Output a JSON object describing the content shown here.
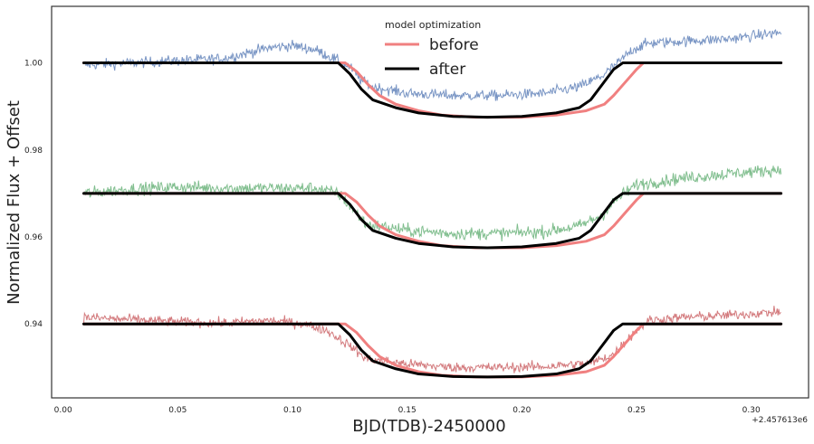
{
  "chart_data": {
    "type": "line",
    "title": "",
    "xlabel": "BJD(TDB)-2450000",
    "ylabel": "Normalized Flux + Offset",
    "x_offset_text": "+2.457613e6",
    "xlim": [
      -0.005,
      0.325
    ],
    "ylim": [
      0.923,
      1.013
    ],
    "xticks": [
      0.0,
      0.05,
      0.1,
      0.15,
      0.2,
      0.25,
      0.3
    ],
    "xtick_labels": [
      "0.00",
      "0.05",
      "0.10",
      "0.15",
      "0.20",
      "0.25",
      "0.30"
    ],
    "yticks": [
      0.94,
      0.96,
      0.98,
      1.0
    ],
    "ytick_labels": [
      "0.94",
      "0.96",
      "0.98",
      "1.00"
    ],
    "grid": false,
    "legend": {
      "title": "model optimization",
      "placement": "top-center",
      "entries": [
        {
          "label": "before",
          "color": "#f08080"
        },
        {
          "label": "after",
          "color": "#000000"
        }
      ]
    },
    "series": [
      {
        "kind": "data",
        "color": "#4c72b0",
        "x_range": [
          0.009,
          0.313
        ],
        "points": [
          [
            0.009,
            0.9995
          ],
          [
            0.03,
            1.0
          ],
          [
            0.05,
            1.0005
          ],
          [
            0.07,
            1.001
          ],
          [
            0.09,
            1.0035
          ],
          [
            0.1,
            1.004
          ],
          [
            0.11,
            1.003
          ],
          [
            0.118,
            1.001
          ],
          [
            0.125,
            0.999
          ],
          [
            0.13,
            0.996
          ],
          [
            0.135,
            0.9945
          ],
          [
            0.15,
            0.993
          ],
          [
            0.17,
            0.9925
          ],
          [
            0.19,
            0.9925
          ],
          [
            0.21,
            0.993
          ],
          [
            0.225,
            0.9945
          ],
          [
            0.235,
            0.997
          ],
          [
            0.242,
            1.0
          ],
          [
            0.248,
            1.003
          ],
          [
            0.255,
            1.0045
          ],
          [
            0.27,
            1.005
          ],
          [
            0.29,
            1.0055
          ],
          [
            0.313,
            1.007
          ]
        ],
        "noise": 0.0012
      },
      {
        "kind": "data",
        "color": "#55a868",
        "x_range": [
          0.009,
          0.313
        ],
        "points": [
          [
            0.009,
            0.97
          ],
          [
            0.03,
            0.971
          ],
          [
            0.05,
            0.9715
          ],
          [
            0.07,
            0.9712
          ],
          [
            0.09,
            0.9712
          ],
          [
            0.11,
            0.9712
          ],
          [
            0.12,
            0.97
          ],
          [
            0.127,
            0.966
          ],
          [
            0.132,
            0.963
          ],
          [
            0.15,
            0.9615
          ],
          [
            0.17,
            0.9608
          ],
          [
            0.19,
            0.9608
          ],
          [
            0.21,
            0.9612
          ],
          [
            0.225,
            0.9625
          ],
          [
            0.235,
            0.965
          ],
          [
            0.242,
            0.969
          ],
          [
            0.25,
            0.972
          ],
          [
            0.27,
            0.9735
          ],
          [
            0.29,
            0.9745
          ],
          [
            0.313,
            0.9755
          ]
        ],
        "noise": 0.0014
      },
      {
        "kind": "data",
        "color": "#c44e52",
        "x_range": [
          0.009,
          0.313
        ],
        "points": [
          [
            0.009,
            0.9415
          ],
          [
            0.03,
            0.941
          ],
          [
            0.05,
            0.9405
          ],
          [
            0.07,
            0.9402
          ],
          [
            0.09,
            0.9408
          ],
          [
            0.105,
            0.94
          ],
          [
            0.115,
            0.9385
          ],
          [
            0.125,
            0.935
          ],
          [
            0.132,
            0.932
          ],
          [
            0.15,
            0.9308
          ],
          [
            0.17,
            0.93
          ],
          [
            0.19,
            0.93
          ],
          [
            0.21,
            0.9302
          ],
          [
            0.23,
            0.931
          ],
          [
            0.24,
            0.933
          ],
          [
            0.247,
            0.937
          ],
          [
            0.255,
            0.9408
          ],
          [
            0.27,
            0.9415
          ],
          [
            0.29,
            0.942
          ],
          [
            0.313,
            0.9428
          ]
        ],
        "noise": 0.0011
      },
      {
        "kind": "model-before",
        "color": "#f08080",
        "points": [
          [
            0.009,
            1.0
          ],
          [
            0.123,
            1.0
          ],
          [
            0.128,
            0.998
          ],
          [
            0.133,
            0.995
          ],
          [
            0.138,
            0.9925
          ],
          [
            0.145,
            0.9905
          ],
          [
            0.155,
            0.989
          ],
          [
            0.165,
            0.988
          ],
          [
            0.18,
            0.9875
          ],
          [
            0.2,
            0.9875
          ],
          [
            0.215,
            0.988
          ],
          [
            0.228,
            0.989
          ],
          [
            0.236,
            0.9905
          ],
          [
            0.24,
            0.9925
          ],
          [
            0.245,
            0.9955
          ],
          [
            0.25,
            0.9985
          ],
          [
            0.253,
            1.0
          ],
          [
            0.313,
            1.0
          ]
        ]
      },
      {
        "kind": "model-after",
        "color": "#000000",
        "points": [
          [
            0.009,
            1.0
          ],
          [
            0.12,
            1.0
          ],
          [
            0.125,
            0.9975
          ],
          [
            0.13,
            0.994
          ],
          [
            0.135,
            0.9915
          ],
          [
            0.145,
            0.9897
          ],
          [
            0.155,
            0.9885
          ],
          [
            0.17,
            0.9877
          ],
          [
            0.185,
            0.9875
          ],
          [
            0.2,
            0.9877
          ],
          [
            0.215,
            0.9885
          ],
          [
            0.225,
            0.9897
          ],
          [
            0.23,
            0.9915
          ],
          [
            0.235,
            0.995
          ],
          [
            0.24,
            0.9985
          ],
          [
            0.244,
            1.0
          ],
          [
            0.313,
            1.0
          ]
        ]
      },
      {
        "kind": "model-before",
        "color": "#f08080",
        "points": [
          [
            0.009,
            0.97
          ],
          [
            0.123,
            0.97
          ],
          [
            0.128,
            0.968
          ],
          [
            0.133,
            0.965
          ],
          [
            0.138,
            0.9625
          ],
          [
            0.145,
            0.9605
          ],
          [
            0.155,
            0.959
          ],
          [
            0.165,
            0.958
          ],
          [
            0.18,
            0.9575
          ],
          [
            0.2,
            0.9575
          ],
          [
            0.215,
            0.958
          ],
          [
            0.228,
            0.959
          ],
          [
            0.236,
            0.9605
          ],
          [
            0.24,
            0.9625
          ],
          [
            0.245,
            0.9655
          ],
          [
            0.25,
            0.9685
          ],
          [
            0.253,
            0.97
          ],
          [
            0.313,
            0.97
          ]
        ]
      },
      {
        "kind": "model-after",
        "color": "#000000",
        "points": [
          [
            0.009,
            0.97
          ],
          [
            0.12,
            0.97
          ],
          [
            0.125,
            0.9675
          ],
          [
            0.13,
            0.964
          ],
          [
            0.135,
            0.9615
          ],
          [
            0.145,
            0.9597
          ],
          [
            0.155,
            0.9585
          ],
          [
            0.17,
            0.9577
          ],
          [
            0.185,
            0.9575
          ],
          [
            0.2,
            0.9577
          ],
          [
            0.215,
            0.9585
          ],
          [
            0.225,
            0.9597
          ],
          [
            0.23,
            0.9615
          ],
          [
            0.235,
            0.965
          ],
          [
            0.24,
            0.9685
          ],
          [
            0.244,
            0.97
          ],
          [
            0.313,
            0.97
          ]
        ]
      },
      {
        "kind": "model-before",
        "color": "#f08080",
        "points": [
          [
            0.009,
            0.94
          ],
          [
            0.123,
            0.94
          ],
          [
            0.128,
            0.938
          ],
          [
            0.133,
            0.935
          ],
          [
            0.138,
            0.9325
          ],
          [
            0.145,
            0.9305
          ],
          [
            0.155,
            0.929
          ],
          [
            0.165,
            0.9282
          ],
          [
            0.18,
            0.9278
          ],
          [
            0.2,
            0.9278
          ],
          [
            0.215,
            0.9282
          ],
          [
            0.228,
            0.929
          ],
          [
            0.236,
            0.9305
          ],
          [
            0.24,
            0.9325
          ],
          [
            0.245,
            0.9355
          ],
          [
            0.25,
            0.9385
          ],
          [
            0.253,
            0.94
          ],
          [
            0.313,
            0.94
          ]
        ]
      },
      {
        "kind": "model-after",
        "color": "#000000",
        "points": [
          [
            0.009,
            0.94
          ],
          [
            0.12,
            0.94
          ],
          [
            0.125,
            0.9375
          ],
          [
            0.13,
            0.934
          ],
          [
            0.135,
            0.9315
          ],
          [
            0.145,
            0.9297
          ],
          [
            0.155,
            0.9285
          ],
          [
            0.17,
            0.9279
          ],
          [
            0.185,
            0.9278
          ],
          [
            0.2,
            0.9279
          ],
          [
            0.215,
            0.9285
          ],
          [
            0.225,
            0.9297
          ],
          [
            0.23,
            0.9315
          ],
          [
            0.235,
            0.935
          ],
          [
            0.24,
            0.9385
          ],
          [
            0.244,
            0.94
          ],
          [
            0.313,
            0.94
          ]
        ]
      }
    ]
  }
}
